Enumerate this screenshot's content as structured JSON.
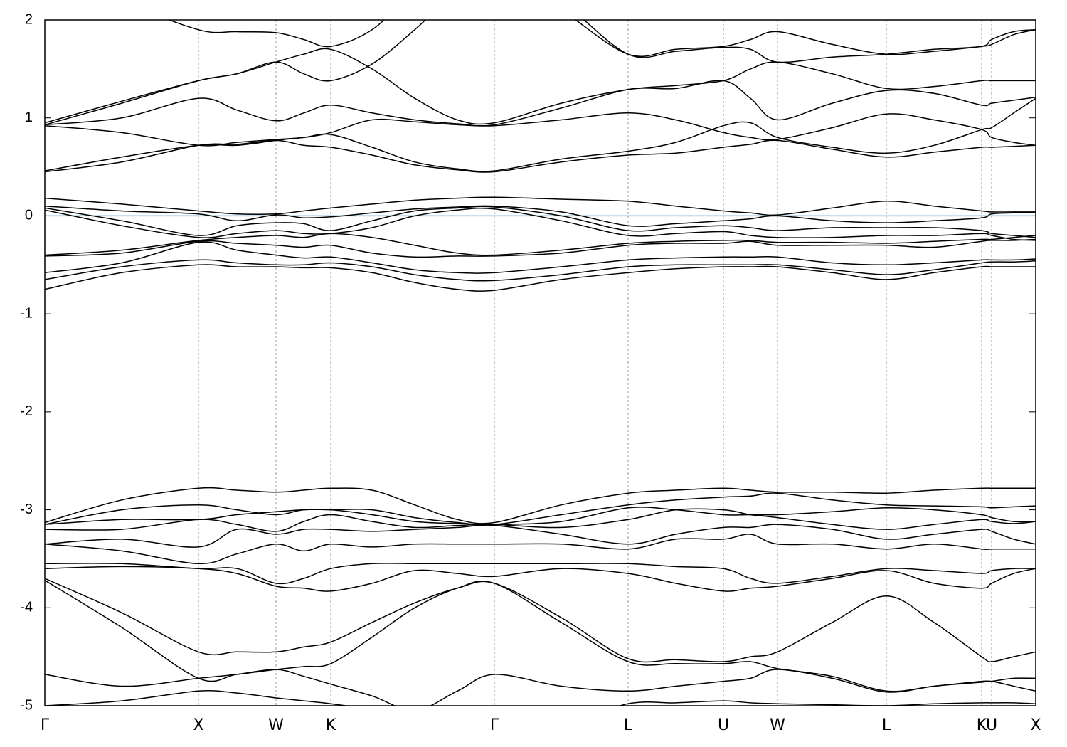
{
  "chart_data": {
    "type": "line",
    "x": [
      0,
      1.08,
      2.16,
      2.7,
      3.25,
      3.64,
      4.02,
      4.6,
      5.2,
      5.8,
      6.32,
      7.26,
      8.2,
      8.87,
      9.54,
      9.92,
      10.3,
      11.07,
      11.83,
      12.5,
      13.17,
      13.31,
      13.62,
      13.93
    ],
    "xlim": [
      0,
      13.93
    ],
    "xticks": [
      {
        "value": 0,
        "label": "Γ"
      },
      {
        "value": 2.16,
        "label": "X"
      },
      {
        "value": 3.25,
        "label": "W"
      },
      {
        "value": 4.02,
        "label": "K"
      },
      {
        "value": 6.32,
        "label": "Γ"
      },
      {
        "value": 8.2,
        "label": "L"
      },
      {
        "value": 9.54,
        "label": "U"
      },
      {
        "value": 10.3,
        "label": "W"
      },
      {
        "value": 11.83,
        "label": "L"
      },
      {
        "value": 13.17,
        "label": "K"
      },
      {
        "value": 13.31,
        "label": "U"
      },
      {
        "value": 13.93,
        "label": "X"
      }
    ],
    "ylim": [
      -5,
      2
    ],
    "yticks": [
      2,
      1,
      0,
      -1,
      -2,
      -3,
      -4,
      -5
    ],
    "xgrid": true,
    "fermi_level": 0,
    "fermi_color": "#66b3c2",
    "series": [
      {
        "color": "#000000",
        "values": [
          0.18,
          0.12,
          0.05,
          0.02,
          0.02,
          0.05,
          0.08,
          0.12,
          0.16,
          0.18,
          0.19,
          0.17,
          0.15,
          0.1,
          0.05,
          0.03,
          0.01,
          0.08,
          0.15,
          0.1,
          0.05,
          0.04,
          0.04,
          0.04
        ]
      },
      {
        "color": "#000000",
        "values": [
          0.1,
          0.05,
          0.02,
          -0.05,
          0.01,
          -0.02,
          -0.01,
          0.03,
          0.07,
          0.09,
          0.1,
          0.04,
          -0.1,
          -0.08,
          -0.05,
          -0.03,
          0.0,
          -0.05,
          -0.07,
          -0.05,
          -0.02,
          0.02,
          0.03,
          0.03
        ]
      },
      {
        "color": "#000000",
        "values": [
          0.08,
          -0.05,
          -0.2,
          -0.1,
          -0.07,
          -0.08,
          -0.15,
          -0.05,
          0.05,
          0.08,
          0.09,
          0.0,
          -0.15,
          -0.12,
          -0.1,
          -0.12,
          -0.15,
          -0.12,
          -0.12,
          -0.12,
          -0.15,
          -0.18,
          -0.2,
          -0.22
        ]
      },
      {
        "color": "#000000",
        "values": [
          0.06,
          -0.1,
          -0.22,
          -0.18,
          -0.15,
          -0.18,
          -0.18,
          -0.12,
          0.0,
          0.06,
          0.07,
          -0.05,
          -0.2,
          -0.18,
          -0.16,
          -0.2,
          -0.22,
          -0.22,
          -0.2,
          -0.2,
          -0.18,
          -0.2,
          -0.24,
          -0.25
        ]
      },
      {
        "color": "#000000",
        "values": [
          -0.4,
          -0.35,
          -0.25,
          -0.22,
          -0.2,
          -0.22,
          -0.18,
          -0.22,
          -0.3,
          -0.38,
          -0.4,
          -0.35,
          -0.28,
          -0.26,
          -0.25,
          -0.25,
          -0.27,
          -0.27,
          -0.28,
          -0.26,
          -0.24,
          -0.24,
          -0.22,
          -0.2
        ]
      },
      {
        "color": "#000000",
        "values": [
          -0.41,
          -0.38,
          -0.26,
          -0.28,
          -0.3,
          -0.32,
          -0.3,
          -0.38,
          -0.42,
          -0.41,
          -0.41,
          -0.38,
          -0.3,
          -0.28,
          -0.28,
          -0.26,
          -0.3,
          -0.3,
          -0.3,
          -0.32,
          -0.26,
          -0.25,
          -0.25,
          -0.24
        ]
      },
      {
        "color": "#000000",
        "values": [
          -0.58,
          -0.48,
          -0.27,
          -0.35,
          -0.4,
          -0.43,
          -0.42,
          -0.48,
          -0.55,
          -0.58,
          -0.58,
          -0.52,
          -0.45,
          -0.43,
          -0.42,
          -0.42,
          -0.42,
          -0.48,
          -0.5,
          -0.48,
          -0.45,
          -0.45,
          -0.45,
          -0.44
        ]
      },
      {
        "color": "#000000",
        "values": [
          -0.65,
          -0.52,
          -0.45,
          -0.48,
          -0.5,
          -0.5,
          -0.48,
          -0.52,
          -0.6,
          -0.65,
          -0.66,
          -0.6,
          -0.52,
          -0.5,
          -0.5,
          -0.5,
          -0.5,
          -0.55,
          -0.6,
          -0.55,
          -0.48,
          -0.47,
          -0.47,
          -0.46
        ]
      },
      {
        "color": "#000000",
        "values": [
          -0.75,
          -0.58,
          -0.5,
          -0.52,
          -0.52,
          -0.53,
          -0.53,
          -0.58,
          -0.68,
          -0.75,
          -0.76,
          -0.65,
          -0.58,
          -0.54,
          -0.52,
          -0.52,
          -0.52,
          -0.58,
          -0.65,
          -0.58,
          -0.52,
          -0.52,
          -0.52,
          -0.52
        ]
      },
      {
        "color": "#000000",
        "values": [
          0.45,
          0.55,
          0.72,
          0.73,
          0.77,
          0.72,
          0.7,
          0.62,
          0.52,
          0.47,
          0.45,
          0.55,
          0.62,
          0.64,
          0.7,
          0.73,
          0.77,
          0.68,
          0.6,
          0.65,
          0.7,
          0.7,
          0.71,
          0.72
        ]
      },
      {
        "color": "#000000",
        "values": [
          0.46,
          0.6,
          0.72,
          0.72,
          0.77,
          0.8,
          0.83,
          0.7,
          0.55,
          0.48,
          0.46,
          0.58,
          0.66,
          0.75,
          0.92,
          0.95,
          0.8,
          0.7,
          0.64,
          0.72,
          0.88,
          0.9,
          1.05,
          1.2
        ]
      },
      {
        "color": "#000000",
        "values": [
          0.92,
          0.85,
          0.72,
          0.75,
          0.78,
          0.8,
          0.85,
          0.98,
          0.96,
          0.93,
          0.92,
          0.98,
          1.05,
          0.98,
          0.85,
          0.8,
          0.78,
          0.9,
          1.04,
          0.98,
          0.88,
          0.8,
          0.75,
          0.72
        ]
      },
      {
        "color": "#000000",
        "values": [
          0.93,
          1.0,
          1.2,
          1.08,
          0.97,
          1.05,
          1.13,
          1.05,
          0.98,
          0.94,
          0.93,
          1.1,
          1.29,
          1.3,
          1.38,
          1.2,
          0.98,
          1.15,
          1.28,
          1.25,
          1.13,
          1.15,
          1.18,
          1.21
        ]
      },
      {
        "color": "#000000",
        "values": [
          0.93,
          1.15,
          1.38,
          1.45,
          1.57,
          1.65,
          1.7,
          1.5,
          1.2,
          0.98,
          0.95,
          1.15,
          1.29,
          1.33,
          1.38,
          1.5,
          1.57,
          1.45,
          1.3,
          1.32,
          1.38,
          1.38,
          1.38,
          1.38
        ]
      },
      {
        "color": "#000000",
        "values": [
          0.95,
          1.17,
          1.38,
          1.45,
          1.57,
          1.45,
          1.38,
          1.55,
          1.9,
          2.3,
          2.5,
          2.1,
          1.65,
          1.7,
          1.73,
          1.8,
          1.88,
          1.75,
          1.65,
          1.68,
          1.73,
          1.75,
          1.85,
          1.9
        ]
      },
      {
        "color": "#000000",
        "values": [
          2.6,
          2.2,
          1.9,
          1.88,
          1.87,
          1.8,
          1.73,
          1.9,
          2.3,
          2.6,
          2.7,
          2.2,
          1.65,
          1.68,
          1.72,
          1.7,
          1.57,
          1.62,
          1.65,
          1.7,
          1.73,
          1.8,
          1.88,
          1.9
        ]
      },
      {
        "color": "#000000",
        "values": [
          -3.13,
          -2.9,
          -2.78,
          -2.8,
          -2.82,
          -2.8,
          -2.78,
          -2.8,
          -2.95,
          -3.1,
          -3.13,
          -2.95,
          -2.83,
          -2.8,
          -2.78,
          -2.8,
          -2.82,
          -2.82,
          -2.83,
          -2.8,
          -2.78,
          -2.78,
          -2.78,
          -2.78
        ]
      },
      {
        "color": "#000000",
        "values": [
          -3.15,
          -3.0,
          -2.95,
          -3.0,
          -3.05,
          -3.0,
          -3.0,
          -3.0,
          -3.08,
          -3.13,
          -3.15,
          -3.05,
          -2.95,
          -2.9,
          -2.87,
          -2.86,
          -2.83,
          -2.9,
          -2.95,
          -2.96,
          -2.97,
          -2.98,
          -2.97,
          -2.96
        ]
      },
      {
        "color": "#000000",
        "values": [
          -3.15,
          -3.1,
          -3.1,
          -3.05,
          -3.02,
          -3.0,
          -3.0,
          -3.05,
          -3.12,
          -3.14,
          -3.15,
          -3.12,
          -2.98,
          -3.0,
          -3.05,
          -3.05,
          -3.05,
          -3.02,
          -2.98,
          -3.0,
          -3.05,
          -3.08,
          -3.12,
          -3.12
        ]
      },
      {
        "color": "#000000",
        "values": [
          -3.2,
          -3.2,
          -3.1,
          -3.15,
          -3.22,
          -3.12,
          -3.05,
          -3.12,
          -3.18,
          -3.16,
          -3.15,
          -3.18,
          -3.1,
          -3.0,
          -3.0,
          -3.05,
          -3.08,
          -3.15,
          -3.2,
          -3.15,
          -3.1,
          -3.12,
          -3.14,
          -3.12
        ]
      },
      {
        "color": "#000000",
        "values": [
          -3.35,
          -3.3,
          -3.38,
          -3.2,
          -3.25,
          -3.2,
          -3.2,
          -3.22,
          -3.2,
          -3.18,
          -3.16,
          -3.25,
          -3.35,
          -3.25,
          -3.18,
          -3.18,
          -3.15,
          -3.2,
          -3.3,
          -3.25,
          -3.2,
          -3.22,
          -3.3,
          -3.35
        ]
      },
      {
        "color": "#000000",
        "values": [
          -3.35,
          -3.42,
          -3.55,
          -3.45,
          -3.35,
          -3.42,
          -3.35,
          -3.38,
          -3.35,
          -3.35,
          -3.35,
          -3.35,
          -3.4,
          -3.3,
          -3.3,
          -3.25,
          -3.35,
          -3.35,
          -3.4,
          -3.35,
          -3.4,
          -3.4,
          -3.4,
          -3.4
        ]
      },
      {
        "color": "#000000",
        "values": [
          -3.55,
          -3.55,
          -3.6,
          -3.6,
          -3.75,
          -3.7,
          -3.6,
          -3.55,
          -3.55,
          -3.55,
          -3.55,
          -3.55,
          -3.55,
          -3.58,
          -3.6,
          -3.7,
          -3.75,
          -3.68,
          -3.6,
          -3.62,
          -3.65,
          -3.62,
          -3.6,
          -3.6
        ]
      },
      {
        "color": "#000000",
        "values": [
          -3.6,
          -3.58,
          -3.6,
          -3.65,
          -3.78,
          -3.8,
          -3.83,
          -3.75,
          -3.62,
          -3.65,
          -3.68,
          -3.6,
          -3.65,
          -3.75,
          -3.83,
          -3.8,
          -3.78,
          -3.7,
          -3.62,
          -3.75,
          -3.8,
          -3.75,
          -3.65,
          -3.6
        ]
      },
      {
        "color": "#000000",
        "values": [
          -3.7,
          -4.05,
          -4.45,
          -4.45,
          -4.45,
          -4.4,
          -4.35,
          -4.15,
          -3.95,
          -3.8,
          -3.75,
          -4.1,
          -4.52,
          -4.53,
          -4.55,
          -4.5,
          -4.45,
          -4.15,
          -3.88,
          -4.15,
          -4.5,
          -4.55,
          -4.5,
          -4.45
        ]
      },
      {
        "color": "#000000",
        "values": [
          -3.72,
          -4.2,
          -4.72,
          -4.68,
          -4.63,
          -4.6,
          -4.57,
          -4.3,
          -4.0,
          -3.8,
          -3.75,
          -4.15,
          -4.55,
          -4.57,
          -4.57,
          -4.55,
          -4.62,
          -4.7,
          -4.85,
          -4.8,
          -4.75,
          -4.75,
          -4.72,
          -4.72
        ]
      },
      {
        "color": "#000000",
        "values": [
          -4.68,
          -4.8,
          -4.72,
          -4.68,
          -4.63,
          -4.7,
          -4.78,
          -4.9,
          -5.05,
          -4.85,
          -4.68,
          -4.8,
          -4.85,
          -4.8,
          -4.75,
          -4.72,
          -4.63,
          -4.72,
          -4.86,
          -4.8,
          -4.76,
          -4.75,
          -4.8,
          -4.85
        ]
      },
      {
        "color": "#000000",
        "values": [
          -5.0,
          -4.95,
          -4.85,
          -4.87,
          -4.92,
          -4.95,
          -4.98,
          -5.05,
          -5.2,
          -5.3,
          -5.35,
          -5.2,
          -4.98,
          -4.97,
          -4.95,
          -4.97,
          -4.98,
          -4.99,
          -5.0,
          -4.98,
          -4.97,
          -4.97,
          -4.97,
          -4.98
        ]
      }
    ]
  }
}
